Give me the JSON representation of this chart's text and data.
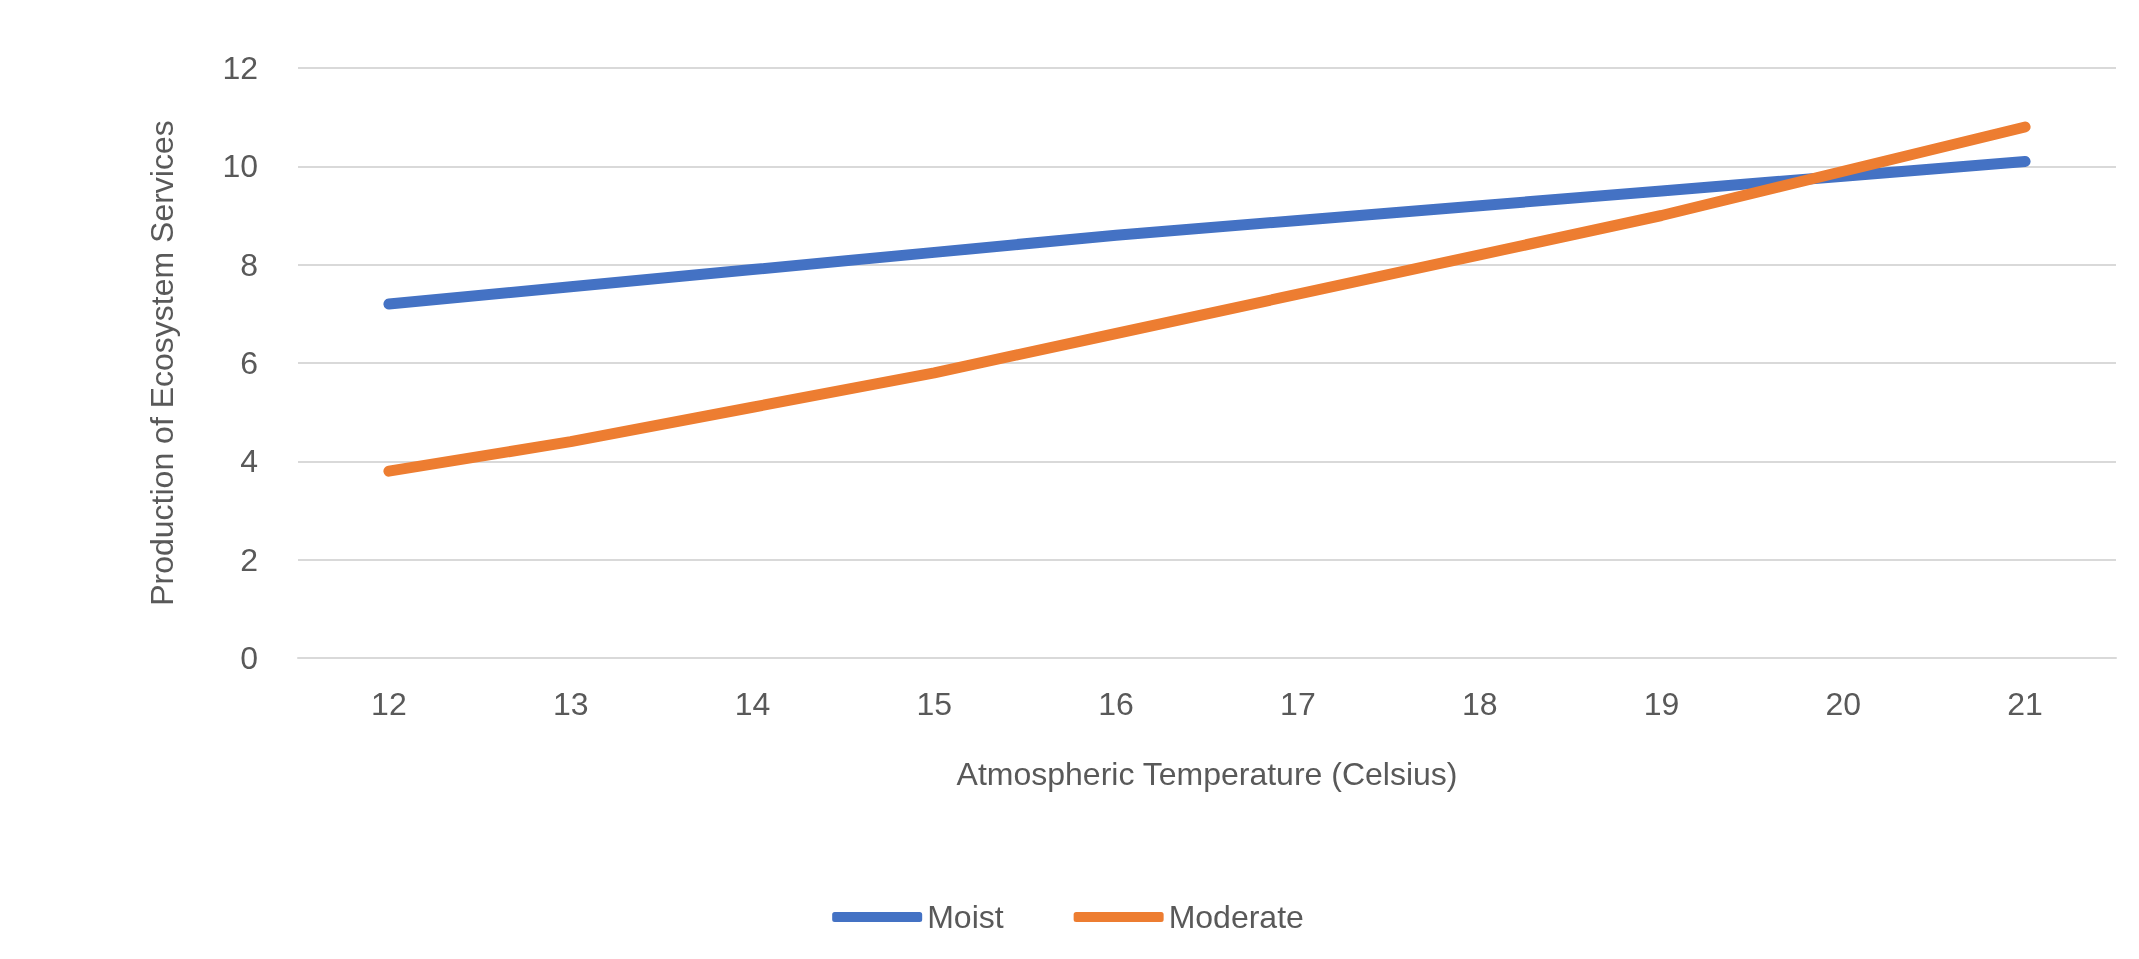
{
  "chart_data": {
    "type": "line",
    "xlabel": "Atmospheric Temperature (Celsius)",
    "ylabel": "Production of Ecosystem Services",
    "categories": [
      "12",
      "13",
      "14",
      "15",
      "16",
      "17",
      "18",
      "19",
      "20",
      "21"
    ],
    "series": [
      {
        "name": "Moist",
        "color": "#4472c4",
        "values": [
          7.2,
          7.55,
          7.9,
          8.25,
          8.6,
          8.9,
          9.2,
          9.5,
          9.8,
          10.1
        ]
      },
      {
        "name": "Moderate",
        "color": "#ed7d31",
        "values": [
          3.8,
          4.4,
          5.1,
          5.8,
          6.6,
          7.4,
          8.2,
          9.0,
          9.9,
          10.8
        ]
      }
    ],
    "ylim": [
      0,
      12
    ],
    "yticks": [
      0,
      2,
      4,
      6,
      8,
      10,
      12
    ],
    "grid": "y",
    "legend": "bottom",
    "marker": "none",
    "line_style": "solid"
  }
}
